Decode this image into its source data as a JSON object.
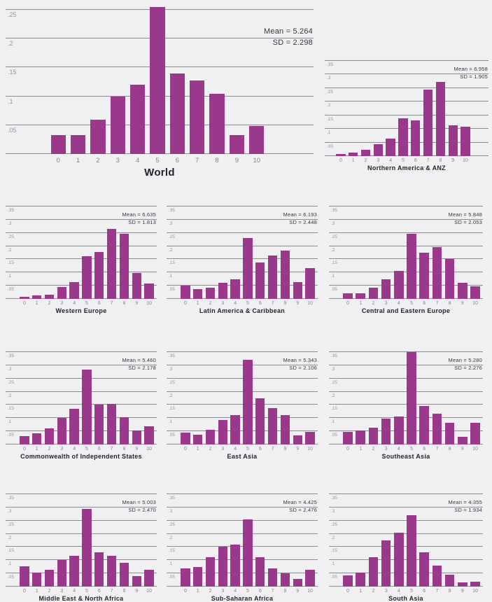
{
  "colors": {
    "background": "#f0eff2",
    "bar": "#9a398c",
    "gridline": "#8e8d92",
    "tick_label": "#97969b",
    "x_label": "#87868b",
    "stats_text": "#39383c",
    "title_text": "#262429"
  },
  "categories": [
    "0",
    "1",
    "2",
    "3",
    "4",
    "5",
    "6",
    "7",
    "8",
    "9",
    "10"
  ],
  "chart_data": [
    {
      "id": "world",
      "type": "bar",
      "title": "World",
      "mean": 5.264,
      "sd": 2.298,
      "mean_label": "Mean = 5.264",
      "sd_label": "SD = 2.298",
      "xlabel": "",
      "ylabel": "",
      "grid": true,
      "legend": false,
      "yticks": [
        ".05",
        ".1",
        ".15",
        ".2",
        ".25"
      ],
      "ymax": 0.255,
      "values": [
        0.033,
        0.033,
        0.059,
        0.099,
        0.12,
        0.26,
        0.14,
        0.127,
        0.104,
        0.033,
        0.048
      ]
    },
    {
      "id": "na-anz",
      "type": "bar",
      "title": "Northern America & ANZ",
      "mean": 6.958,
      "sd": 1.905,
      "mean_label": "Mean = 6.958",
      "sd_label": "SD = 1.905",
      "yticks": [
        ".05",
        ".1",
        ".15",
        ".2",
        ".25",
        ".3",
        ".35"
      ],
      "ymax": 0.35,
      "values": [
        0.007,
        0.012,
        0.022,
        0.045,
        0.065,
        0.138,
        0.132,
        0.245,
        0.272,
        0.113,
        0.107
      ]
    },
    {
      "id": "western-europe",
      "type": "bar",
      "title": "Western Europe",
      "mean": 6.635,
      "sd": 1.813,
      "mean_label": "Mean = 6.635",
      "sd_label": "SD = 1.813",
      "yticks": [
        ".05",
        ".1",
        ".15",
        ".2",
        ".25",
        ".3",
        ".35"
      ],
      "ymax": 0.35,
      "values": [
        0.008,
        0.013,
        0.016,
        0.045,
        0.065,
        0.162,
        0.178,
        0.265,
        0.247,
        0.097,
        0.058
      ]
    },
    {
      "id": "latin-america",
      "type": "bar",
      "title": "Latin America & Caribbean",
      "mean": 6.193,
      "sd": 2.448,
      "mean_label": "Mean = 6.193",
      "sd_label": "SD = 2.448",
      "yticks": [
        ".05",
        ".1",
        ".15",
        ".2",
        ".25",
        ".3",
        ".35"
      ],
      "ymax": 0.35,
      "values": [
        0.05,
        0.037,
        0.043,
        0.06,
        0.075,
        0.23,
        0.138,
        0.165,
        0.182,
        0.063,
        0.117
      ]
    },
    {
      "id": "cee",
      "type": "bar",
      "title": "Central and Eastern Europe",
      "mean": 5.848,
      "sd": 2.053,
      "mean_label": "Mean = 5.848",
      "sd_label": "SD = 2.053",
      "yticks": [
        ".05",
        ".1",
        ".15",
        ".2",
        ".25",
        ".3",
        ".35"
      ],
      "ymax": 0.35,
      "values": [
        0.022,
        0.022,
        0.043,
        0.075,
        0.107,
        0.247,
        0.175,
        0.197,
        0.152,
        0.062,
        0.048
      ]
    },
    {
      "id": "cis",
      "type": "bar",
      "title": "Commonwealth of Independent States",
      "mean": 5.46,
      "sd": 2.178,
      "mean_label": "Mean = 5.460",
      "sd_label": "SD = 2.178",
      "yticks": [
        ".05",
        ".1",
        ".15",
        ".2",
        ".25",
        ".3",
        ".35"
      ],
      "ymax": 0.35,
      "values": [
        0.033,
        0.043,
        0.06,
        0.102,
        0.135,
        0.283,
        0.15,
        0.155,
        0.103,
        0.052,
        0.068
      ]
    },
    {
      "id": "east-asia",
      "type": "bar",
      "title": "East Asia",
      "mean": 5.343,
      "sd": 2.106,
      "mean_label": "Mean = 5.343",
      "sd_label": "SD = 2.106",
      "yticks": [
        ".05",
        ".1",
        ".15",
        ".2",
        ".25",
        ".3",
        ".35"
      ],
      "ymax": 0.35,
      "values": [
        0.045,
        0.038,
        0.055,
        0.092,
        0.112,
        0.322,
        0.175,
        0.137,
        0.112,
        0.035,
        0.047
      ]
    },
    {
      "id": "southeast-asia",
      "type": "bar",
      "title": "Southeast Asia",
      "mean": 5.28,
      "sd": 2.276,
      "mean_label": "Mean = 5.280",
      "sd_label": "SD = 2.276",
      "yticks": [
        ".05",
        ".1",
        ".15",
        ".2",
        ".25",
        ".3",
        ".35"
      ],
      "ymax": 0.35,
      "values": [
        0.047,
        0.053,
        0.063,
        0.097,
        0.105,
        0.35,
        0.147,
        0.117,
        0.082,
        0.03,
        0.082
      ]
    },
    {
      "id": "mena",
      "type": "bar",
      "title": "Middle East & North Africa",
      "mean": 5.003,
      "sd": 2.47,
      "mean_label": "Mean = 5.003",
      "sd_label": "SD = 2.470",
      "yticks": [
        ".05",
        ".1",
        ".15",
        ".2",
        ".25",
        ".3",
        ".35"
      ],
      "ymax": 0.35,
      "values": [
        0.078,
        0.053,
        0.065,
        0.102,
        0.118,
        0.295,
        0.13,
        0.117,
        0.09,
        0.04,
        0.065
      ]
    },
    {
      "id": "ssa",
      "type": "bar",
      "title": "Sub-Saharan Africa",
      "mean": 4.425,
      "sd": 2.476,
      "mean_label": "Mean = 4.425",
      "sd_label": "SD = 2.476",
      "yticks": [
        ".05",
        ".1",
        ".15",
        ".2",
        ".25",
        ".3",
        ".35"
      ],
      "ymax": 0.35,
      "values": [
        0.07,
        0.075,
        0.112,
        0.15,
        0.16,
        0.255,
        0.112,
        0.07,
        0.05,
        0.03,
        0.065
      ]
    },
    {
      "id": "south-asia",
      "type": "bar",
      "title": "South Asia",
      "mean": 4.355,
      "sd": 1.934,
      "mean_label": "Mean = 4.355",
      "sd_label": "SD = 1.934",
      "yticks": [
        ".05",
        ".1",
        ".15",
        ".2",
        ".25",
        ".3",
        ".35"
      ],
      "ymax": 0.35,
      "values": [
        0.043,
        0.053,
        0.112,
        0.175,
        0.205,
        0.27,
        0.13,
        0.08,
        0.045,
        0.015,
        0.018
      ]
    }
  ]
}
